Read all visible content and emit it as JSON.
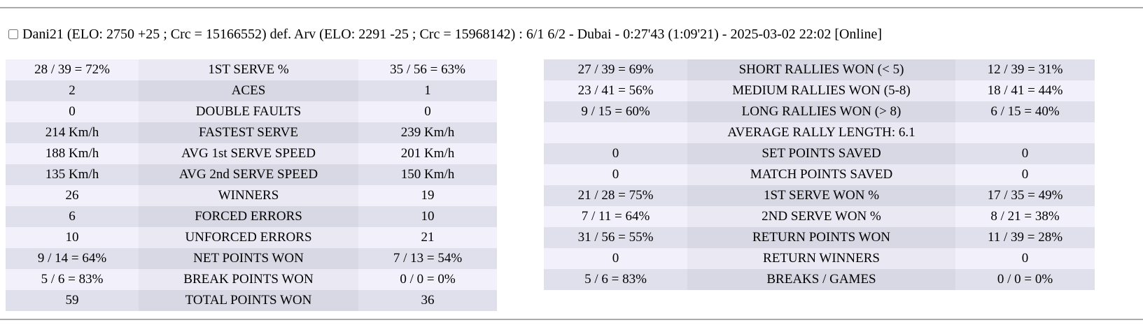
{
  "header": {
    "checkbox_checked": false,
    "match_summary": "Dani21 (ELO: 2750 +25 ; Crc = 15166552) def. Arv (ELO: 2291 -25 ; Crc = 15968142) : 6/1 6/2 - Dubai - 0:27'43 (1:09'21) - 2025-03-02 22:02 [Online]"
  },
  "colors": {
    "row_light_outer": "#f2f1fb",
    "row_light_center": "#e9e8f3",
    "row_dark_outer": "#e0dfec",
    "row_dark_center": "#d8d7e4",
    "divider": "#aaaaaa",
    "text": "#000000"
  },
  "left_table": {
    "rows": [
      {
        "p1": "28 / 39 = 72%",
        "label": "1ST SERVE %",
        "p2": "35 / 56 = 63%"
      },
      {
        "p1": "2",
        "label": "ACES",
        "p2": "1"
      },
      {
        "p1": "0",
        "label": "DOUBLE FAULTS",
        "p2": "0"
      },
      {
        "p1": "214 Km/h",
        "label": "FASTEST SERVE",
        "p2": "239 Km/h"
      },
      {
        "p1": "188 Km/h",
        "label": "AVG 1st SERVE SPEED",
        "p2": "201 Km/h"
      },
      {
        "p1": "135 Km/h",
        "label": "AVG 2nd SERVE SPEED",
        "p2": "150 Km/h"
      },
      {
        "p1": "26",
        "label": "WINNERS",
        "p2": "19"
      },
      {
        "p1": "6",
        "label": "FORCED ERRORS",
        "p2": "10"
      },
      {
        "p1": "10",
        "label": "UNFORCED ERRORS",
        "p2": "21"
      },
      {
        "p1": "9 / 14 = 64%",
        "label": "NET POINTS WON",
        "p2": "7 / 13 = 54%"
      },
      {
        "p1": "5 / 6 = 83%",
        "label": "BREAK POINTS WON",
        "p2": "0 / 0 = 0%"
      },
      {
        "p1": "59",
        "label": "TOTAL POINTS WON",
        "p2": "36"
      }
    ]
  },
  "right_table": {
    "rows": [
      {
        "p1": "27 / 39 = 69%",
        "label": "SHORT RALLIES WON (< 5)",
        "p2": "12 / 39 = 31%"
      },
      {
        "p1": "23 / 41 = 56%",
        "label": "MEDIUM RALLIES WON (5-8)",
        "p2": "18 / 41 = 44%"
      },
      {
        "p1": "9 / 15 = 60%",
        "label": "LONG RALLIES WON (> 8)",
        "p2": "6 / 15 = 40%"
      },
      {
        "p1": "",
        "label": "AVERAGE RALLY LENGTH: 6.1",
        "p2": ""
      },
      {
        "p1": "0",
        "label": "SET POINTS SAVED",
        "p2": "0"
      },
      {
        "p1": "0",
        "label": "MATCH POINTS SAVED",
        "p2": "0"
      },
      {
        "p1": "21 / 28 = 75%",
        "label": "1ST SERVE WON %",
        "p2": "17 / 35 = 49%"
      },
      {
        "p1": "7 / 11 = 64%",
        "label": "2ND SERVE WON %",
        "p2": "8 / 21 = 38%"
      },
      {
        "p1": "31 / 56 = 55%",
        "label": "RETURN POINTS WON",
        "p2": "11 / 39 = 28%"
      },
      {
        "p1": "0",
        "label": "RETURN WINNERS",
        "p2": "0"
      },
      {
        "p1": "5 / 6 = 83%",
        "label": "BREAKS / GAMES",
        "p2": "0 / 0 = 0%"
      }
    ]
  }
}
